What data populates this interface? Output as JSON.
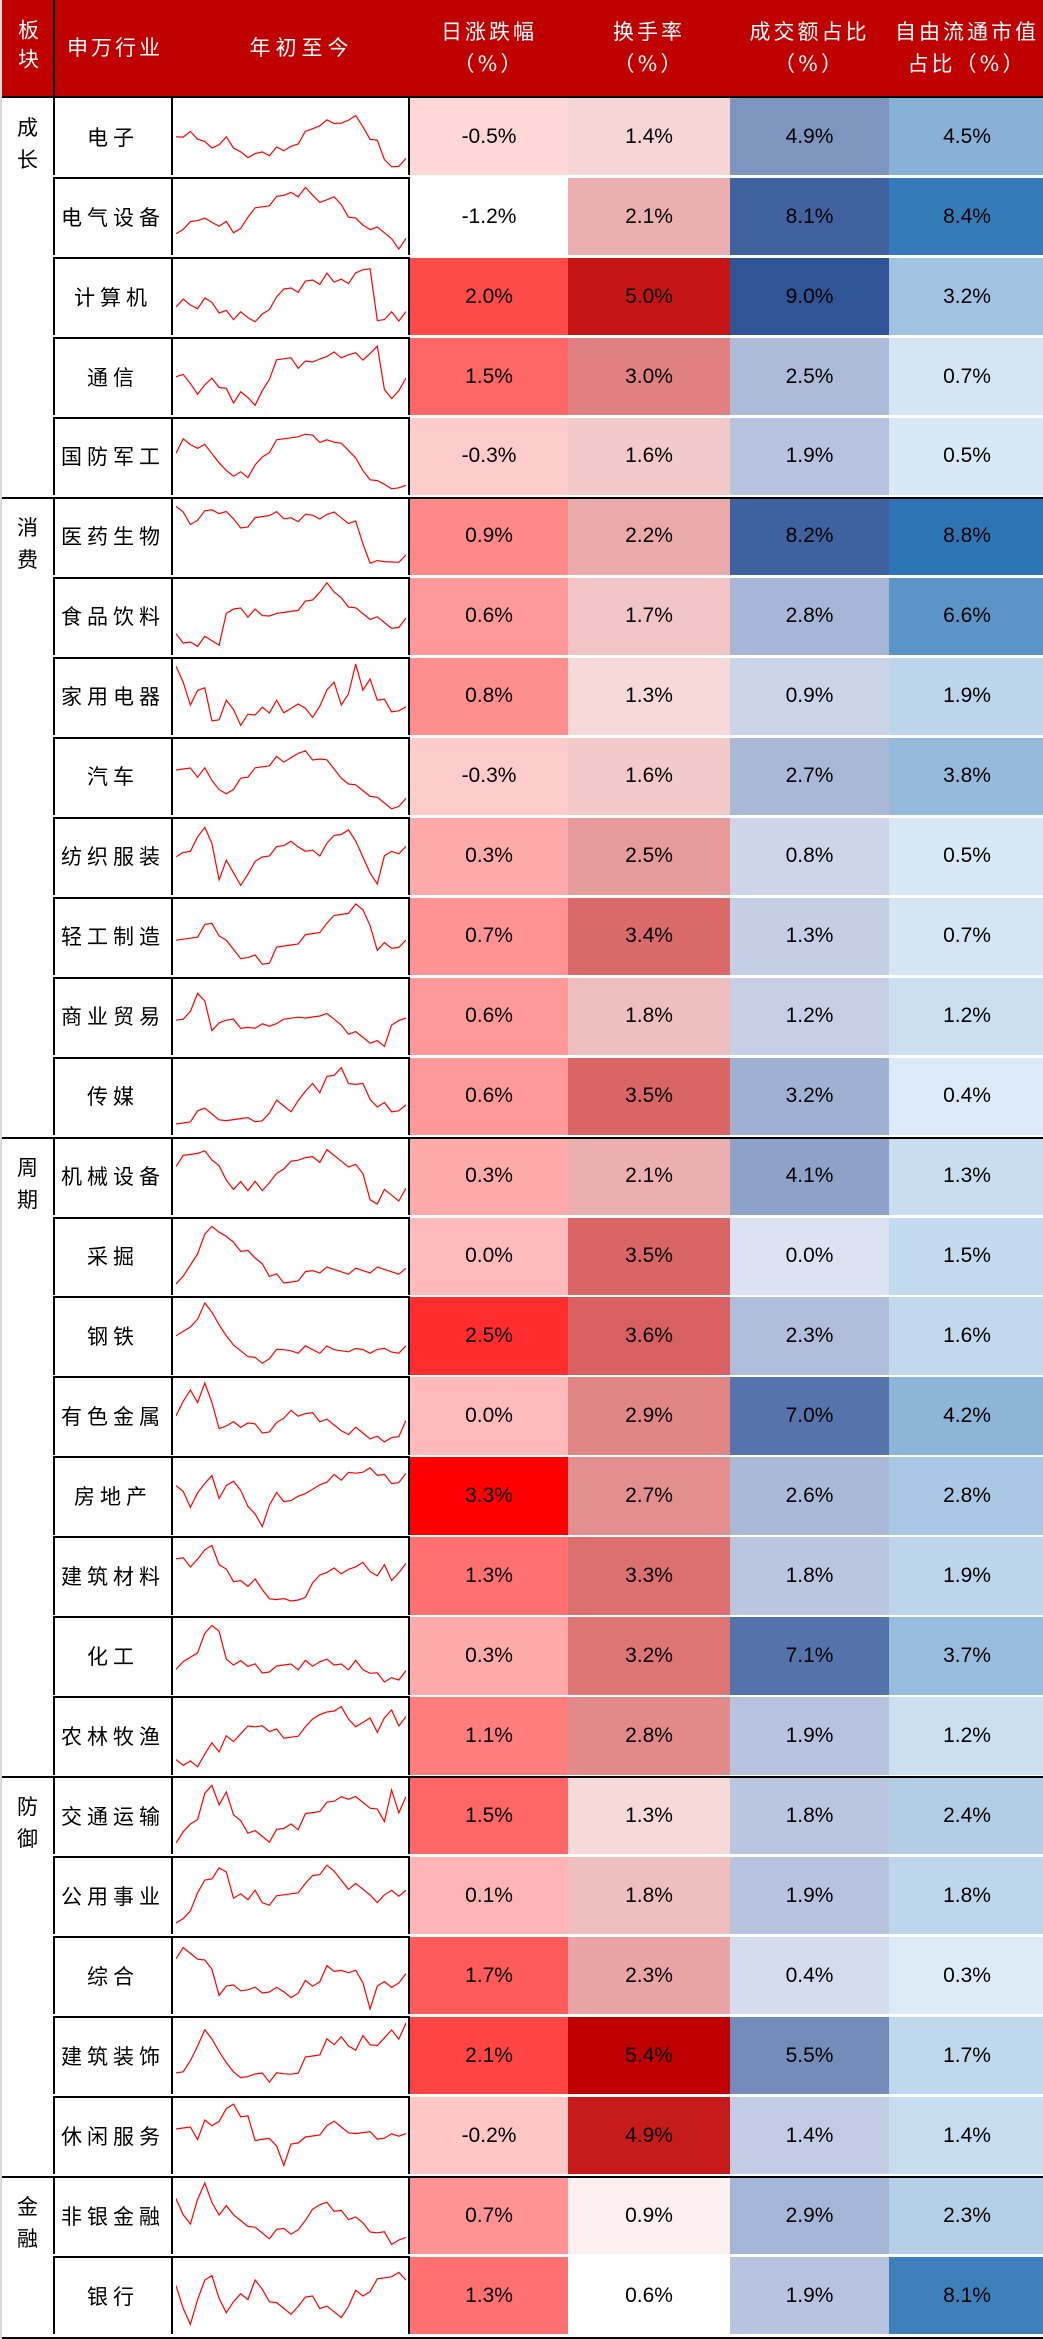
{
  "header": {
    "board": "板块",
    "industry": "申万行业",
    "ytd": "年初至今",
    "daily_change": [
      "日涨跌幅",
      "（%）"
    ],
    "turnover": [
      "换手率",
      "（%）"
    ],
    "volume_share": [
      "成交额占比",
      "（%）"
    ],
    "float_cap_share": [
      "自由流通市值",
      "占比（%）"
    ]
  },
  "colors": {
    "header_bg": "#c00000",
    "sparkline": "#ff0000",
    "red_max": "#ff0000",
    "turnover_max": "#c00000",
    "volume_max": "#2f5597",
    "float_max": "#2e75b6"
  },
  "groups": [
    {
      "label": [
        "成",
        "长"
      ],
      "start": 0,
      "count": 5
    },
    {
      "label": [
        "消",
        "费"
      ],
      "start": 5,
      "count": 8
    },
    {
      "label": [
        "周",
        "期"
      ],
      "start": 13,
      "count": 8
    },
    {
      "label": [
        "防",
        "御"
      ],
      "start": 21,
      "count": 5
    },
    {
      "label": [
        "金",
        "融"
      ],
      "start": 26,
      "count": 2
    }
  ],
  "chart_data": {
    "type": "table",
    "title": "",
    "columns": [
      "板块",
      "申万行业",
      "年初至今",
      "日涨跌幅（%）",
      "换手率（%）",
      "成交额占比（%）",
      "自由流通市值占比（%）"
    ],
    "rows": [
      {
        "board": "成长",
        "industry": "电子",
        "daily": "-0.5%",
        "turnover": "1.4%",
        "volume": "4.9%",
        "float": "4.5%",
        "spark": [
          55,
          52,
          40,
          48,
          60,
          66,
          58,
          55,
          68,
          70,
          75,
          78,
          72,
          74,
          70,
          72,
          62,
          55,
          45,
          38,
          30,
          30,
          32,
          28,
          20,
          22,
          35,
          50,
          60,
          85,
          92,
          88,
          85
        ]
      },
      {
        "board": "成长",
        "industry": "电气设备",
        "daily": "-1.2%",
        "turnover": "2.1%",
        "volume": "8.1%",
        "float": "8.4%",
        "spark": [
          80,
          70,
          55,
          50,
          55,
          58,
          60,
          62,
          75,
          65,
          45,
          40,
          35,
          30,
          25,
          20,
          12,
          15,
          10,
          18,
          25,
          30,
          22,
          30,
          45,
          55,
          62,
          65,
          70,
          75,
          80,
          92,
          85
        ]
      },
      {
        "board": "成长",
        "industry": "计算机",
        "daily": "2.0%",
        "turnover": "5.0%",
        "volume": "9.0%",
        "float": "3.2%",
        "spark": [
          70,
          55,
          60,
          62,
          55,
          58,
          70,
          75,
          85,
          70,
          75,
          90,
          75,
          65,
          55,
          40,
          35,
          38,
          30,
          25,
          28,
          20,
          30,
          22,
          25,
          18,
          10,
          5,
          90,
          85,
          70,
          80,
          75
        ]
      },
      {
        "board": "成长",
        "industry": "通信",
        "daily": "1.5%",
        "turnover": "3.0%",
        "volume": "2.5%",
        "float": "0.7%",
        "spark": [
          55,
          48,
          58,
          70,
          65,
          52,
          62,
          72,
          90,
          70,
          75,
          95,
          70,
          50,
          30,
          25,
          20,
          32,
          30,
          28,
          20,
          25,
          15,
          20,
          12,
          18,
          25,
          12,
          10,
          70,
          80,
          65,
          55
        ]
      },
      {
        "board": "成长",
        "industry": "国防军工",
        "daily": "-0.3%",
        "turnover": "1.6%",
        "volume": "1.9%",
        "float": "0.5%",
        "spark": [
          50,
          25,
          30,
          32,
          35,
          45,
          55,
          75,
          80,
          70,
          75,
          65,
          50,
          40,
          30,
          25,
          20,
          15,
          20,
          18,
          25,
          30,
          30,
          28,
          35,
          55,
          70,
          80,
          90,
          92,
          95,
          90,
          95
        ]
      },
      {
        "board": "消费",
        "industry": "医药生物",
        "daily": "0.9%",
        "turnover": "2.2%",
        "volume": "8.2%",
        "float": "8.8%",
        "spark": [
          10,
          15,
          30,
          20,
          15,
          10,
          12,
          18,
          25,
          35,
          30,
          25,
          20,
          15,
          18,
          25,
          20,
          22,
          20,
          18,
          20,
          22,
          15,
          20,
          25,
          30,
          60,
          85,
          90,
          88,
          85,
          82,
          80
        ]
      },
      {
        "board": "消费",
        "industry": "食品饮料",
        "daily": "0.6%",
        "turnover": "1.7%",
        "volume": "2.8%",
        "float": "6.6%",
        "spark": [
          80,
          90,
          85,
          88,
          82,
          85,
          88,
          50,
          40,
          35,
          45,
          42,
          48,
          45,
          50,
          45,
          40,
          35,
          30,
          25,
          10,
          5,
          15,
          20,
          30,
          40,
          45,
          50,
          55,
          60,
          65,
          60,
          55
        ]
      },
      {
        "board": "消费",
        "industry": "家用电器",
        "daily": "0.8%",
        "turnover": "1.3%",
        "volume": "0.9%",
        "float": "1.9%",
        "spark": [
          10,
          30,
          60,
          35,
          40,
          85,
          80,
          60,
          70,
          90,
          70,
          80,
          65,
          70,
          60,
          75,
          65,
          55,
          70,
          80,
          60,
          45,
          30,
          60,
          40,
          5,
          40,
          20,
          60,
          55,
          70,
          65,
          68
        ]
      },
      {
        "board": "消费",
        "industry": "汽车",
        "daily": "-0.3%",
        "turnover": "1.6%",
        "volume": "2.7%",
        "float": "3.8%",
        "spark": [
          45,
          40,
          35,
          45,
          40,
          55,
          65,
          80,
          70,
          50,
          45,
          40,
          35,
          30,
          25,
          30,
          20,
          10,
          15,
          25,
          20,
          30,
          40,
          50,
          55,
          65,
          70,
          75,
          85,
          90,
          95,
          88,
          85
        ]
      },
      {
        "board": "消费",
        "industry": "纺织服装",
        "daily": "0.3%",
        "turnover": "2.5%",
        "volume": "0.8%",
        "float": "0.5%",
        "spark": [
          55,
          45,
          40,
          15,
          10,
          30,
          80,
          60,
          75,
          90,
          70,
          60,
          50,
          45,
          40,
          35,
          25,
          30,
          45,
          40,
          45,
          35,
          20,
          15,
          5,
          30,
          50,
          70,
          95,
          50,
          40,
          40,
          38
        ]
      },
      {
        "board": "消费",
        "industry": "轻工制造",
        "daily": "0.7%",
        "turnover": "3.4%",
        "volume": "1.3%",
        "float": "0.7%",
        "spark": [
          60,
          55,
          50,
          45,
          35,
          30,
          45,
          60,
          70,
          80,
          75,
          80,
          90,
          85,
          70,
          65,
          60,
          55,
          50,
          45,
          40,
          35,
          20,
          15,
          10,
          5,
          10,
          30,
          75,
          60,
          65,
          60,
          58
        ]
      },
      {
        "board": "消费",
        "industry": "商业贸易",
        "daily": "0.6%",
        "turnover": "1.8%",
        "volume": "1.2%",
        "float": "1.2%",
        "spark": [
          60,
          55,
          40,
          10,
          30,
          70,
          55,
          60,
          55,
          65,
          60,
          70,
          60,
          60,
          65,
          55,
          50,
          45,
          55,
          50,
          45,
          50,
          55,
          60,
          70,
          75,
          80,
          85,
          90,
          95,
          60,
          50,
          55
        ]
      },
      {
        "board": "消费",
        "industry": "传媒",
        "daily": "0.6%",
        "turnover": "3.5%",
        "volume": "3.2%",
        "float": "0.4%",
        "spark": [
          95,
          90,
          85,
          65,
          70,
          75,
          80,
          90,
          85,
          80,
          75,
          90,
          85,
          70,
          60,
          65,
          70,
          50,
          45,
          30,
          40,
          25,
          20,
          5,
          25,
          35,
          30,
          50,
          70,
          60,
          70,
          65,
          65
        ]
      },
      {
        "board": "周期",
        "industry": "机械设备",
        "daily": "0.3%",
        "turnover": "2.1%",
        "volume": "4.1%",
        "float": "1.3%",
        "spark": [
          40,
          20,
          15,
          10,
          15,
          25,
          30,
          60,
          70,
          55,
          65,
          60,
          70,
          55,
          50,
          40,
          25,
          20,
          25,
          20,
          25,
          15,
          20,
          25,
          30,
          35,
          45,
          80,
          95,
          70,
          75,
          80,
          70
        ]
      },
      {
        "board": "周期",
        "industry": "采掘",
        "daily": "0.0%",
        "turnover": "3.5%",
        "volume": "0.0%",
        "float": "1.5%",
        "spark": [
          95,
          80,
          60,
          40,
          20,
          5,
          10,
          25,
          30,
          40,
          35,
          55,
          60,
          75,
          80,
          90,
          85,
          80,
          75,
          70,
          70,
          70,
          70,
          70,
          70,
          70,
          70,
          70,
          70,
          70,
          70,
          70,
          70
        ]
      },
      {
        "board": "周期",
        "industry": "钢铁",
        "daily": "2.5%",
        "turnover": "3.6%",
        "volume": "2.3%",
        "float": "1.6%",
        "spark": [
          55,
          45,
          35,
          20,
          5,
          15,
          30,
          55,
          65,
          70,
          75,
          85,
          90,
          80,
          75,
          72,
          70,
          70,
          68,
          70,
          72,
          70,
          72,
          70,
          68,
          72,
          70,
          72,
          75,
          70,
          72,
          70,
          68
        ]
      },
      {
        "board": "周期",
        "industry": "有色金属",
        "daily": "0.0%",
        "turnover": "2.9%",
        "volume": "7.0%",
        "float": "4.2%",
        "spark": [
          55,
          30,
          10,
          25,
          5,
          30,
          65,
          70,
          60,
          65,
          55,
          65,
          75,
          70,
          65,
          55,
          40,
          45,
          50,
          45,
          55,
          60,
          65,
          70,
          72,
          70,
          75,
          80,
          85,
          90,
          80,
          75,
          60
        ]
      },
      {
        "board": "周期",
        "industry": "房地产",
        "daily": "3.3%",
        "turnover": "2.7%",
        "volume": "2.6%",
        "float": "2.8%",
        "spark": [
          40,
          45,
          65,
          40,
          35,
          20,
          50,
          40,
          30,
          40,
          60,
          80,
          95,
          60,
          50,
          60,
          55,
          45,
          50,
          40,
          30,
          35,
          20,
          25,
          10,
          20,
          15,
          5,
          25,
          20,
          30,
          25,
          20
        ]
      },
      {
        "board": "周期",
        "industry": "建筑材料",
        "daily": "1.3%",
        "turnover": "3.3%",
        "volume": "1.8%",
        "float": "1.9%",
        "spark": [
          30,
          25,
          35,
          20,
          15,
          5,
          30,
          45,
          60,
          55,
          60,
          58,
          70,
          80,
          90,
          85,
          85,
          80,
          85,
          60,
          45,
          50,
          40,
          45,
          35,
          40,
          30,
          40,
          55,
          35,
          55,
          40,
          35
        ]
      },
      {
        "board": "周期",
        "industry": "化工",
        "daily": "0.3%",
        "turnover": "3.2%",
        "volume": "7.1%",
        "float": "3.7%",
        "spark": [
          75,
          60,
          50,
          40,
          20,
          5,
          10,
          60,
          65,
          55,
          60,
          65,
          75,
          70,
          70,
          65,
          60,
          65,
          60,
          65,
          55,
          60,
          65,
          60,
          65,
          60,
          70,
          72,
          80,
          90,
          80,
          80,
          75
        ]
      },
      {
        "board": "周期",
        "industry": "农林牧渔",
        "daily": "1.1%",
        "turnover": "2.8%",
        "volume": "1.9%",
        "float": "1.2%",
        "spark": [
          90,
          95,
          85,
          90,
          80,
          60,
          70,
          55,
          60,
          45,
          30,
          40,
          35,
          40,
          45,
          55,
          50,
          45,
          40,
          25,
          15,
          20,
          15,
          5,
          20,
          40,
          30,
          20,
          50,
          25,
          10,
          30,
          25
        ]
      },
      {
        "board": "防御",
        "industry": "交通运输",
        "daily": "1.5%",
        "turnover": "1.3%",
        "volume": "1.8%",
        "float": "2.4%",
        "spark": [
          95,
          75,
          60,
          50,
          20,
          5,
          30,
          20,
          50,
          55,
          70,
          75,
          80,
          85,
          75,
          70,
          60,
          65,
          50,
          45,
          40,
          35,
          30,
          20,
          20,
          25,
          30,
          35,
          45,
          60,
          10,
          40,
          25
        ]
      },
      {
        "board": "防御",
        "industry": "公用事业",
        "daily": "0.1%",
        "turnover": "1.8%",
        "volume": "1.9%",
        "float": "1.8%",
        "spark": [
          95,
          85,
          70,
          40,
          30,
          25,
          5,
          20,
          55,
          45,
          50,
          45,
          60,
          60,
          55,
          50,
          45,
          40,
          35,
          20,
          15,
          10,
          15,
          25,
          35,
          35,
          40,
          45,
          65,
          50,
          40,
          45,
          45
        ]
      },
      {
        "board": "防御",
        "industry": "综合",
        "daily": "1.7%",
        "turnover": "2.3%",
        "volume": "0.4%",
        "float": "0.3%",
        "spark": [
          30,
          10,
          15,
          20,
          30,
          40,
          75,
          70,
          65,
          70,
          65,
          70,
          75,
          70,
          72,
          75,
          80,
          70,
          60,
          65,
          55,
          40,
          45,
          40,
          40,
          45,
          60,
          95,
          70,
          60,
          65,
          55,
          50
        ]
      },
      {
        "board": "防御",
        "industry": "建筑装饰",
        "daily": "2.1%",
        "turnover": "5.4%",
        "volume": "5.5%",
        "float": "1.7%",
        "spark": [
          80,
          75,
          55,
          30,
          15,
          25,
          40,
          65,
          75,
          80,
          75,
          80,
          75,
          85,
          80,
          78,
          75,
          70,
          55,
          50,
          45,
          30,
          35,
          20,
          30,
          45,
          20,
          30,
          40,
          25,
          10,
          20,
          5
        ]
      },
      {
        "board": "防御",
        "industry": "休闲服务",
        "daily": "-0.2%",
        "turnover": "4.9%",
        "volume": "1.4%",
        "float": "1.4%",
        "spark": [
          45,
          40,
          35,
          50,
          30,
          35,
          25,
          15,
          5,
          20,
          15,
          60,
          55,
          50,
          70,
          95,
          60,
          55,
          55,
          50,
          45,
          40,
          30,
          35,
          40,
          50,
          45,
          40,
          60,
          55,
          45,
          45,
          50
        ]
      },
      {
        "board": "金融",
        "industry": "非银金融",
        "daily": "0.7%",
        "turnover": "0.9%",
        "volume": "2.9%",
        "float": "2.3%",
        "spark": [
          30,
          50,
          60,
          20,
          5,
          30,
          45,
          40,
          50,
          55,
          60,
          70,
          75,
          80,
          75,
          70,
          75,
          65,
          60,
          40,
          30,
          35,
          45,
          40,
          50,
          55,
          60,
          70,
          80,
          75,
          90,
          80,
          85
        ]
      },
      {
        "board": "金融",
        "industry": "银行",
        "daily": "1.3%",
        "turnover": "0.6%",
        "volume": "1.9%",
        "float": "8.1%",
        "spark": [
          40,
          70,
          90,
          50,
          30,
          20,
          50,
          80,
          60,
          45,
          50,
          30,
          40,
          55,
          65,
          70,
          75,
          60,
          55,
          50,
          65,
          70,
          75,
          80,
          60,
          45,
          50,
          40,
          30,
          25,
          20,
          10,
          30
        ]
      }
    ]
  }
}
